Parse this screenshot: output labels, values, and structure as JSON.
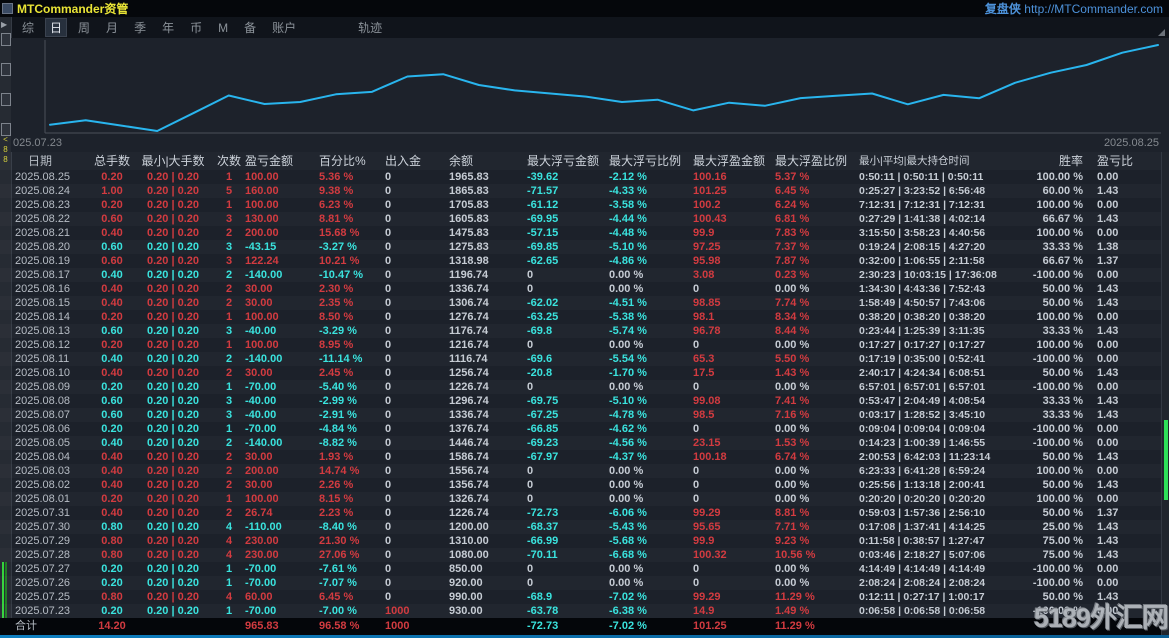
{
  "title_bar": {
    "title": "MTCommander资管",
    "brand": "复盘侠",
    "url": "http://MTCommander.com"
  },
  "menu": {
    "items": [
      {
        "label": "综",
        "selected": false
      },
      {
        "label": "日",
        "selected": true
      },
      {
        "label": "周",
        "selected": false
      },
      {
        "label": "月",
        "selected": false
      },
      {
        "label": "季",
        "selected": false
      },
      {
        "label": "年",
        "selected": false
      },
      {
        "label": "币",
        "selected": false
      },
      {
        "label": "M",
        "selected": false
      },
      {
        "label": "备",
        "selected": false
      },
      {
        "label": "账户",
        "selected": false
      },
      {
        "label": "轨迹",
        "selected": false,
        "far": true
      }
    ]
  },
  "chart_data": {
    "type": "line",
    "title": "",
    "xlabel": "",
    "ylabel": "",
    "x_start_label": "025.07.23",
    "x_end_label": "2025.08.25",
    "line_color": "#29b5ee",
    "x": [
      "2025.07.23",
      "2025.07.25",
      "2025.07.26",
      "2025.07.27",
      "2025.07.28",
      "2025.07.29",
      "2025.07.30",
      "2025.07.31",
      "2025.08.01",
      "2025.08.02",
      "2025.08.03",
      "2025.08.04",
      "2025.08.05",
      "2025.08.06",
      "2025.08.07",
      "2025.08.08",
      "2025.08.09",
      "2025.08.10",
      "2025.08.11",
      "2025.08.12",
      "2025.08.13",
      "2025.08.14",
      "2025.08.15",
      "2025.08.16",
      "2025.08.17",
      "2025.08.19",
      "2025.08.20",
      "2025.08.21",
      "2025.08.22",
      "2025.08.23",
      "2025.08.24",
      "2025.08.25"
    ],
    "balances": [
      930.0,
      990.0,
      920.0,
      850.0,
      1080.0,
      1310.0,
      1200.0,
      1226.74,
      1326.74,
      1356.74,
      1556.74,
      1586.74,
      1446.74,
      1376.74,
      1336.74,
      1296.74,
      1226.74,
      1256.74,
      1116.74,
      1216.74,
      1176.74,
      1276.74,
      1306.74,
      1336.74,
      1196.74,
      1318.98,
      1275.83,
      1475.83,
      1605.83,
      1705.83,
      1865.83,
      1965.83
    ],
    "ylim": [
      850,
      1965.83
    ],
    "grid": false,
    "legend": "none"
  },
  "table": {
    "headers": [
      "日期",
      "总手数",
      "最小|大手数",
      "次数",
      "盈亏金额",
      "百分比%",
      "出入金",
      "余额",
      "最大浮亏金额",
      "最大浮亏比例",
      "最大浮盈金额",
      "最大浮盈比例",
      "最小|平均|最大持仓时间",
      "胜率",
      "盈亏比"
    ],
    "rows": [
      {
        "t": "up",
        "c": [
          "2025.08.25",
          "0.20",
          "0.20 | 0.20",
          "1",
          "100.00",
          "5.36 %",
          "0",
          "1965.83",
          "-39.62",
          "-2.12 %",
          "100.16",
          "5.37 %",
          "0:50:11 | 0:50:11 | 0:50:11",
          "100.00 %",
          "0.00"
        ]
      },
      {
        "t": "up",
        "c": [
          "2025.08.24",
          "1.00",
          "0.20 | 0.20",
          "5",
          "160.00",
          "9.38 %",
          "0",
          "1865.83",
          "-71.57",
          "-4.33 %",
          "101.25",
          "6.45 %",
          "0:25:27 | 3:23:52 | 6:56:48",
          "60.00 %",
          "1.43"
        ]
      },
      {
        "t": "up",
        "c": [
          "2025.08.23",
          "0.20",
          "0.20 | 0.20",
          "1",
          "100.00",
          "6.23 %",
          "0",
          "1705.83",
          "-61.12",
          "-3.58 %",
          "100.2",
          "6.24 %",
          "7:12:31 | 7:12:31 | 7:12:31",
          "100.00 %",
          "0.00"
        ]
      },
      {
        "t": "up",
        "c": [
          "2025.08.22",
          "0.60",
          "0.20 | 0.20",
          "3",
          "130.00",
          "8.81 %",
          "0",
          "1605.83",
          "-69.95",
          "-4.44 %",
          "100.43",
          "6.81 %",
          "0:27:29 | 1:41:38 | 4:02:14",
          "66.67 %",
          "1.43"
        ]
      },
      {
        "t": "up",
        "c": [
          "2025.08.21",
          "0.40",
          "0.20 | 0.20",
          "2",
          "200.00",
          "15.68 %",
          "0",
          "1475.83",
          "-57.15",
          "-4.48 %",
          "99.9",
          "7.83 %",
          "3:15:50 | 3:58:23 | 4:40:56",
          "100.00 %",
          "0.00"
        ]
      },
      {
        "t": "down",
        "c": [
          "2025.08.20",
          "0.60",
          "0.20 | 0.20",
          "3",
          "-43.15",
          "-3.27 %",
          "0",
          "1275.83",
          "-69.85",
          "-5.10 %",
          "97.25",
          "7.37 %",
          "0:19:24 | 2:08:15 | 4:27:20",
          "33.33 %",
          "1.38"
        ]
      },
      {
        "t": "up",
        "c": [
          "2025.08.19",
          "0.60",
          "0.20 | 0.20",
          "3",
          "122.24",
          "10.21 %",
          "0",
          "1318.98",
          "-62.65",
          "-4.86 %",
          "95.98",
          "7.87 %",
          "0:32:00 | 1:06:55 | 2:11:58",
          "66.67 %",
          "1.37"
        ]
      },
      {
        "t": "down",
        "c": [
          "2025.08.17",
          "0.40",
          "0.20 | 0.20",
          "2",
          "-140.00",
          "-10.47 %",
          "0",
          "1196.74",
          "0",
          "0.00 %",
          "3.08",
          "0.23 %",
          "2:30:23 | 10:03:15 | 17:36:08",
          "-100.00 %",
          "0.00"
        ]
      },
      {
        "t": "up",
        "c": [
          "2025.08.16",
          "0.40",
          "0.20 | 0.20",
          "2",
          "30.00",
          "2.30 %",
          "0",
          "1336.74",
          "0",
          "0.00 %",
          "0",
          "0.00 %",
          "1:34:30 | 4:43:36 | 7:52:43",
          "50.00 %",
          "1.43"
        ]
      },
      {
        "t": "up",
        "c": [
          "2025.08.15",
          "0.40",
          "0.20 | 0.20",
          "2",
          "30.00",
          "2.35 %",
          "0",
          "1306.74",
          "-62.02",
          "-4.51 %",
          "98.85",
          "7.74 %",
          "1:58:49 | 4:50:57 | 7:43:06",
          "50.00 %",
          "1.43"
        ]
      },
      {
        "t": "up",
        "c": [
          "2025.08.14",
          "0.20",
          "0.20 | 0.20",
          "1",
          "100.00",
          "8.50 %",
          "0",
          "1276.74",
          "-63.25",
          "-5.38 %",
          "98.1",
          "8.34 %",
          "0:38:20 | 0:38:20 | 0:38:20",
          "100.00 %",
          "0.00"
        ]
      },
      {
        "t": "down",
        "c": [
          "2025.08.13",
          "0.60",
          "0.20 | 0.20",
          "3",
          "-40.00",
          "-3.29 %",
          "0",
          "1176.74",
          "-69.8",
          "-5.74 %",
          "96.78",
          "8.44 %",
          "0:23:44 | 1:25:39 | 3:11:35",
          "33.33 %",
          "1.43"
        ]
      },
      {
        "t": "up",
        "c": [
          "2025.08.12",
          "0.20",
          "0.20 | 0.20",
          "1",
          "100.00",
          "8.95 %",
          "0",
          "1216.74",
          "0",
          "0.00 %",
          "0",
          "0.00 %",
          "0:17:27 | 0:17:27 | 0:17:27",
          "100.00 %",
          "0.00"
        ]
      },
      {
        "t": "down",
        "c": [
          "2025.08.11",
          "0.40",
          "0.20 | 0.20",
          "2",
          "-140.00",
          "-11.14 %",
          "0",
          "1116.74",
          "-69.6",
          "-5.54 %",
          "65.3",
          "5.50 %",
          "0:17:19 | 0:35:00 | 0:52:41",
          "-100.00 %",
          "0.00"
        ]
      },
      {
        "t": "up",
        "c": [
          "2025.08.10",
          "0.40",
          "0.20 | 0.20",
          "2",
          "30.00",
          "2.45 %",
          "0",
          "1256.74",
          "-20.8",
          "-1.70 %",
          "17.5",
          "1.43 %",
          "2:40:17 | 4:24:34 | 6:08:51",
          "50.00 %",
          "1.43"
        ]
      },
      {
        "t": "down",
        "c": [
          "2025.08.09",
          "0.20",
          "0.20 | 0.20",
          "1",
          "-70.00",
          "-5.40 %",
          "0",
          "1226.74",
          "0",
          "0.00 %",
          "0",
          "0.00 %",
          "6:57:01 | 6:57:01 | 6:57:01",
          "-100.00 %",
          "0.00"
        ]
      },
      {
        "t": "down",
        "c": [
          "2025.08.08",
          "0.60",
          "0.20 | 0.20",
          "3",
          "-40.00",
          "-2.99 %",
          "0",
          "1296.74",
          "-69.75",
          "-5.10 %",
          "99.08",
          "7.41 %",
          "0:53:47 | 2:04:49 | 4:08:54",
          "33.33 %",
          "1.43"
        ]
      },
      {
        "t": "down",
        "c": [
          "2025.08.07",
          "0.60",
          "0.20 | 0.20",
          "3",
          "-40.00",
          "-2.91 %",
          "0",
          "1336.74",
          "-67.25",
          "-4.78 %",
          "98.5",
          "7.16 %",
          "0:03:17 | 1:28:52 | 3:45:10",
          "33.33 %",
          "1.43"
        ]
      },
      {
        "t": "down",
        "c": [
          "2025.08.06",
          "0.20",
          "0.20 | 0.20",
          "1",
          "-70.00",
          "-4.84 %",
          "0",
          "1376.74",
          "-66.85",
          "-4.62 %",
          "0",
          "0.00 %",
          "0:09:04 | 0:09:04 | 0:09:04",
          "-100.00 %",
          "0.00"
        ]
      },
      {
        "t": "down",
        "c": [
          "2025.08.05",
          "0.40",
          "0.20 | 0.20",
          "2",
          "-140.00",
          "-8.82 %",
          "0",
          "1446.74",
          "-69.23",
          "-4.56 %",
          "23.15",
          "1.53 %",
          "0:14:23 | 1:00:39 | 1:46:55",
          "-100.00 %",
          "0.00"
        ]
      },
      {
        "t": "up",
        "c": [
          "2025.08.04",
          "0.40",
          "0.20 | 0.20",
          "2",
          "30.00",
          "1.93 %",
          "0",
          "1586.74",
          "-67.97",
          "-4.37 %",
          "100.18",
          "6.74 %",
          "2:00:53 | 6:42:03 | 11:23:14",
          "50.00 %",
          "1.43"
        ]
      },
      {
        "t": "up",
        "c": [
          "2025.08.03",
          "0.40",
          "0.20 | 0.20",
          "2",
          "200.00",
          "14.74 %",
          "0",
          "1556.74",
          "0",
          "0.00 %",
          "0",
          "0.00 %",
          "6:23:33 | 6:41:28 | 6:59:24",
          "100.00 %",
          "0.00"
        ]
      },
      {
        "t": "up",
        "c": [
          "2025.08.02",
          "0.40",
          "0.20 | 0.20",
          "2",
          "30.00",
          "2.26 %",
          "0",
          "1356.74",
          "0",
          "0.00 %",
          "0",
          "0.00 %",
          "0:25:56 | 1:13:18 | 2:00:41",
          "50.00 %",
          "1.43"
        ]
      },
      {
        "t": "up",
        "c": [
          "2025.08.01",
          "0.20",
          "0.20 | 0.20",
          "1",
          "100.00",
          "8.15 %",
          "0",
          "1326.74",
          "0",
          "0.00 %",
          "0",
          "0.00 %",
          "0:20:20 | 0:20:20 | 0:20:20",
          "100.00 %",
          "0.00"
        ]
      },
      {
        "t": "up",
        "c": [
          "2025.07.31",
          "0.40",
          "0.20 | 0.20",
          "2",
          "26.74",
          "2.23 %",
          "0",
          "1226.74",
          "-72.73",
          "-6.06 %",
          "99.29",
          "8.81 %",
          "0:59:03 | 1:57:36 | 2:56:10",
          "50.00 %",
          "1.37"
        ]
      },
      {
        "t": "down",
        "c": [
          "2025.07.30",
          "0.80",
          "0.20 | 0.20",
          "4",
          "-110.00",
          "-8.40 %",
          "0",
          "1200.00",
          "-68.37",
          "-5.43 %",
          "95.65",
          "7.71 %",
          "0:17:08 | 1:37:41 | 4:14:25",
          "25.00 %",
          "1.43"
        ]
      },
      {
        "t": "up",
        "c": [
          "2025.07.29",
          "0.80",
          "0.20 | 0.20",
          "4",
          "230.00",
          "21.30 %",
          "0",
          "1310.00",
          "-66.99",
          "-5.68 %",
          "99.9",
          "9.23 %",
          "0:11:58 | 0:38:57 | 1:27:47",
          "75.00 %",
          "1.43"
        ]
      },
      {
        "t": "up",
        "c": [
          "2025.07.28",
          "0.80",
          "0.20 | 0.20",
          "4",
          "230.00",
          "27.06 %",
          "0",
          "1080.00",
          "-70.11",
          "-6.68 %",
          "100.32",
          "10.56 %",
          "0:03:46 | 2:18:27 | 5:07:06",
          "75.00 %",
          "1.43"
        ]
      },
      {
        "t": "down",
        "c": [
          "2025.07.27",
          "0.20",
          "0.20 | 0.20",
          "1",
          "-70.00",
          "-7.61 %",
          "0",
          "850.00",
          "0",
          "0.00 %",
          "0",
          "0.00 %",
          "4:14:49 | 4:14:49 | 4:14:49",
          "-100.00 %",
          "0.00"
        ]
      },
      {
        "t": "down",
        "c": [
          "2025.07.26",
          "0.20",
          "0.20 | 0.20",
          "1",
          "-70.00",
          "-7.07 %",
          "0",
          "920.00",
          "0",
          "0.00 %",
          "0",
          "0.00 %",
          "2:08:24 | 2:08:24 | 2:08:24",
          "-100.00 %",
          "0.00"
        ]
      },
      {
        "t": "up",
        "c": [
          "2025.07.25",
          "0.80",
          "0.20 | 0.20",
          "4",
          "60.00",
          "6.45 %",
          "0",
          "990.00",
          "-68.9",
          "-7.02 %",
          "99.29",
          "11.29 %",
          "0:12:11 | 0:27:17 | 1:00:17",
          "50.00 %",
          "1.43"
        ]
      },
      {
        "t": "down",
        "c": [
          "2025.07.23",
          "0.20",
          "0.20 | 0.20",
          "1",
          "-70.00",
          "-7.00 %",
          "1000",
          "930.00",
          "-63.78",
          "-6.38 %",
          "14.9",
          "1.49 %",
          "0:06:58 | 0:06:58 | 0:06:58",
          "-100.00 %",
          "0.00"
        ]
      }
    ],
    "total_row": [
      "合计",
      "14.20",
      "",
      "",
      "965.83",
      "96.58 %",
      "1000",
      "",
      "-72.73",
      "-7.02 %",
      "101.25",
      "11.29 %",
      "",
      "",
      ""
    ]
  },
  "watermark": "5189外汇网",
  "colors": {
    "profit": "#d23b40",
    "loss": "#3ae3de",
    "neutral": "#c6ccd4",
    "date": "#b7bdc5",
    "title_yellow": "#e9e436",
    "brand_blue": "#4d92da",
    "chart_line": "#29b5ee",
    "background": "#1c212a",
    "total_row_bg": "#04060a"
  }
}
